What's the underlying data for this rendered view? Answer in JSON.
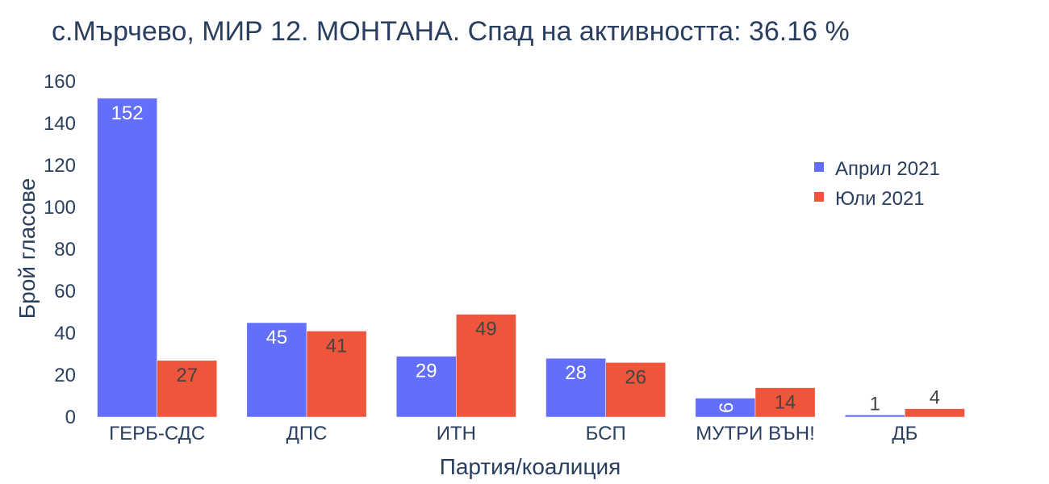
{
  "chart_data": {
    "type": "bar",
    "title": "с.Мърчево, МИР 12. МОНТАНА. Спад на активността: 36.16 %",
    "xlabel": "Партия/коалиция",
    "ylabel": "Брой гласове",
    "categories": [
      "ГЕРБ-СДС",
      "ДПС",
      "ИТН",
      "БСП",
      "МУТРИ ВЪН!",
      "ДБ"
    ],
    "series": [
      {
        "name": "Април 2021",
        "color": "#636efa",
        "values": [
          152,
          45,
          29,
          28,
          9,
          1
        ]
      },
      {
        "name": "Юли 2021",
        "color": "#ef553b",
        "values": [
          27,
          41,
          49,
          26,
          14,
          4
        ]
      }
    ],
    "ylim": [
      0,
      160
    ],
    "yticks": [
      0,
      20,
      40,
      60,
      80,
      100,
      120,
      140,
      160
    ],
    "legend_position": "top-right",
    "grid": false
  }
}
